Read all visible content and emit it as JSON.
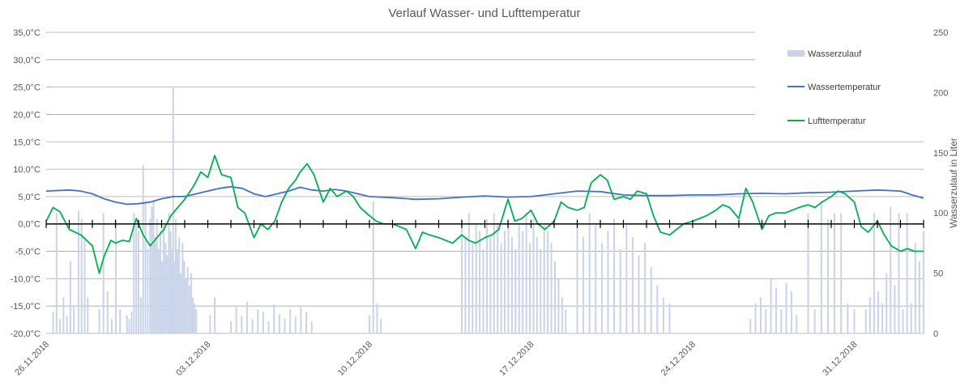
{
  "chart_data": {
    "type": "line",
    "title": "Verlauf Wasser- und Lufttemperatur",
    "x_axis": {
      "range": [
        "26.11.2018",
        "03.01.2019"
      ],
      "tick_labels": [
        "26.11.2018",
        "03.12.2018",
        "10.12.2018",
        "17.12.2018",
        "24.12.2018",
        "31.12.2018"
      ],
      "minor_ticks": "every 24h"
    },
    "y_axis_left": {
      "ylim": [
        -20,
        35
      ],
      "tick_labels": [
        "35,0°C",
        "30,0°C",
        "25,0°C",
        "20,0°C",
        "15,0°C",
        "10,0°C",
        "5,0°C",
        "0,0°C",
        "-5,0°C",
        "-10,0°C",
        "-15,0°C",
        "-20,0°C"
      ],
      "grid": true
    },
    "y_axis_right": {
      "label": "Wasserzulauf in Liter",
      "ylim": [
        0,
        250
      ],
      "tick_labels": [
        "250",
        "200",
        "150",
        "100",
        "50",
        "0"
      ]
    },
    "legend": {
      "placement": "top-right",
      "items": [
        "Wasserzulauf",
        "Wassertemperatur",
        "Lufttemperatur"
      ]
    },
    "colors": {
      "wasserzulauf": "#c9d4ea",
      "wassertemperatur": "#4472c4",
      "lufttemperatur": "#00b050",
      "grid": "#a6a6a6",
      "text": "#595959"
    },
    "series": [
      {
        "name": "Wassertemperatur",
        "axis": "left",
        "days": [
          0,
          1,
          1.5,
          2,
          2.5,
          3,
          3.5,
          4,
          4.5,
          5,
          5.5,
          6,
          6.5,
          7,
          7.5,
          8,
          8.5,
          9,
          9.5,
          10,
          10.5,
          11,
          11.5,
          12,
          12.5,
          13,
          14,
          15,
          16,
          17,
          18,
          19,
          20,
          21,
          22,
          23,
          24,
          25,
          26,
          27,
          28,
          29,
          30,
          31,
          32,
          33,
          34,
          35,
          36,
          37,
          37.5,
          38
        ],
        "values": [
          6.0,
          6.2,
          6.0,
          5.5,
          4.6,
          4.0,
          3.6,
          3.7,
          4.0,
          4.6,
          5.0,
          5.0,
          5.5,
          6.0,
          6.5,
          6.8,
          6.5,
          5.5,
          5.0,
          5.5,
          6.0,
          6.7,
          6.2,
          6.0,
          6.3,
          6.0,
          5.0,
          4.8,
          4.5,
          4.6,
          4.9,
          5.1,
          4.9,
          5.0,
          5.5,
          6.0,
          5.9,
          5.3,
          5.2,
          5.2,
          5.3,
          5.3,
          5.5,
          5.6,
          5.5,
          5.7,
          5.8,
          6.0,
          6.2,
          6.0,
          5.3,
          4.7
        ]
      },
      {
        "name": "Lufttemperatur",
        "axis": "left",
        "days": [
          0,
          0.3,
          0.6,
          1,
          1.5,
          2,
          2.3,
          2.5,
          2.8,
          3,
          3.3,
          3.6,
          3.9,
          4.2,
          4.5,
          4.8,
          5.1,
          5.4,
          5.7,
          6,
          6.4,
          6.7,
          7,
          7.3,
          7.6,
          8,
          8.3,
          8.6,
          9,
          9.3,
          9.6,
          9.9,
          10.2,
          10.5,
          10.8,
          11,
          11.3,
          11.6,
          12,
          12.3,
          12.6,
          13,
          13.3,
          13.6,
          14,
          14.3,
          14.6,
          15,
          15.3,
          15.6,
          16,
          16.3,
          16.6,
          17,
          17.3,
          17.6,
          18,
          18.3,
          18.6,
          19,
          19.3,
          19.6,
          20,
          20.3,
          20.6,
          21,
          21.3,
          21.6,
          22,
          22.3,
          22.6,
          23,
          23.3,
          23.6,
          24,
          24.3,
          24.6,
          25,
          25.3,
          25.6,
          26,
          26.3,
          26.6,
          27,
          27.3,
          27.6,
          28,
          28.3,
          28.6,
          29,
          29.3,
          29.6,
          30,
          30.3,
          30.6,
          31,
          31.3,
          31.6,
          32,
          32.3,
          32.6,
          33,
          33.3,
          33.6,
          34,
          34.3,
          34.6,
          35,
          35.3,
          35.6,
          36,
          36.3,
          36.6,
          37,
          37.3,
          37.6,
          38
        ],
        "values": [
          0.5,
          3.0,
          2.2,
          -1.0,
          -2.0,
          -4.0,
          -9.0,
          -6.0,
          -3.0,
          -3.5,
          -3.0,
          -3.2,
          1.0,
          -2.0,
          -4.0,
          -2.5,
          -1.0,
          1.5,
          3.0,
          4.5,
          7.0,
          9.5,
          8.5,
          12.5,
          9.0,
          8.5,
          3.0,
          2.0,
          -2.5,
          0.0,
          -1.0,
          0.5,
          4.0,
          6.5,
          8.0,
          9.5,
          11.0,
          9.0,
          4.0,
          6.5,
          5.0,
          6.0,
          5.0,
          3.0,
          1.5,
          0.5,
          0.0,
          0.0,
          -0.5,
          -1.0,
          -4.5,
          -1.5,
          -2.0,
          -2.5,
          -3.0,
          -3.5,
          -2.0,
          -3.0,
          -3.5,
          -2.5,
          -2.0,
          -1.0,
          4.5,
          0.5,
          1.0,
          2.5,
          0.0,
          -1.0,
          0.5,
          4.0,
          3.0,
          2.5,
          3.0,
          7.5,
          9.0,
          8.0,
          4.5,
          5.0,
          4.5,
          6.0,
          5.5,
          1.5,
          -1.5,
          -2.0,
          -1.0,
          0.0,
          0.5,
          1.0,
          1.5,
          2.5,
          3.5,
          3.0,
          1.0,
          6.5,
          4.0,
          -1.0,
          1.5,
          2.0,
          2.0,
          2.5,
          3.0,
          3.5,
          3.0,
          4.0,
          5.0,
          6.0,
          5.5,
          4.0,
          -0.5,
          -1.5,
          0.5,
          -2.0,
          -4.0,
          -5.0,
          -4.5,
          -5.0,
          -5.0
        ]
      },
      {
        "name": "Wasserzulauf",
        "axis": "right",
        "kind": "bar",
        "groups": [
          {
            "start": 0.3,
            "end": 1.2,
            "values": [
              18,
              100,
              12,
              30,
              15,
              60,
              22
            ]
          },
          {
            "start": 1.4,
            "end": 1.8,
            "values": [
              102,
              95,
              80,
              30
            ]
          },
          {
            "start": 2.3,
            "end": 3.2,
            "values": [
              20,
              100,
              35,
              12,
              95,
              20
            ]
          },
          {
            "start": 3.5,
            "end": 4.4,
            "values": [
              15,
              12,
              18,
              100,
              90,
              85,
              30,
              140,
              110,
              70
            ]
          },
          {
            "start": 4.5,
            "end": 6.5,
            "values": [
              95,
              105,
              110,
              80,
              95,
              70,
              85,
              60,
              90,
              75,
              65,
              100,
              85,
              70,
              60,
              95,
              70,
              80,
              50,
              75,
              60,
              45,
              55,
              40,
              50,
              30,
              25,
              20
            ]
          },
          {
            "start": 5.5,
            "end": 5.6,
            "values": [
              205
            ]
          },
          {
            "start": 7.1,
            "end": 7.3,
            "values": [
              15,
              30
            ]
          },
          {
            "start": 8.0,
            "end": 11.5,
            "values": [
              10,
              22,
              14,
              26,
              12,
              20,
              18,
              10,
              24,
              16,
              12,
              20,
              14,
              22,
              18,
              10
            ]
          },
          {
            "start": 14.0,
            "end": 14.5,
            "values": [
              15,
              110,
              25,
              12
            ]
          },
          {
            "start": 18.0,
            "end": 22.5,
            "values": [
              95,
              80,
              100,
              75,
              90,
              85,
              70,
              95,
              80,
              100,
              90,
              75,
              85,
              95,
              80,
              70,
              90,
              85,
              100,
              75,
              95,
              80,
              70,
              90,
              85,
              75,
              60,
              45,
              30,
              20
            ]
          },
          {
            "start": 23.0,
            "end": 27.0,
            "values": [
              95,
              80,
              100,
              90,
              75,
              85,
              95,
              70,
              90,
              80,
              65,
              75,
              55,
              40,
              30,
              25
            ]
          },
          {
            "start": 30.5,
            "end": 32.5,
            "values": [
              12,
              25,
              30,
              20,
              45,
              38,
              20,
              42,
              35,
              15
            ]
          },
          {
            "start": 33.0,
            "end": 35.0,
            "values": [
              100,
              20,
              110,
              95,
              100,
              100,
              25,
              20
            ]
          },
          {
            "start": 35.5,
            "end": 38.0,
            "values": [
              20,
              30,
              100,
              35,
              25,
              50,
              105,
              40,
              100,
              20,
              100,
              25,
              75,
              60,
              85
            ]
          }
        ]
      }
    ]
  }
}
